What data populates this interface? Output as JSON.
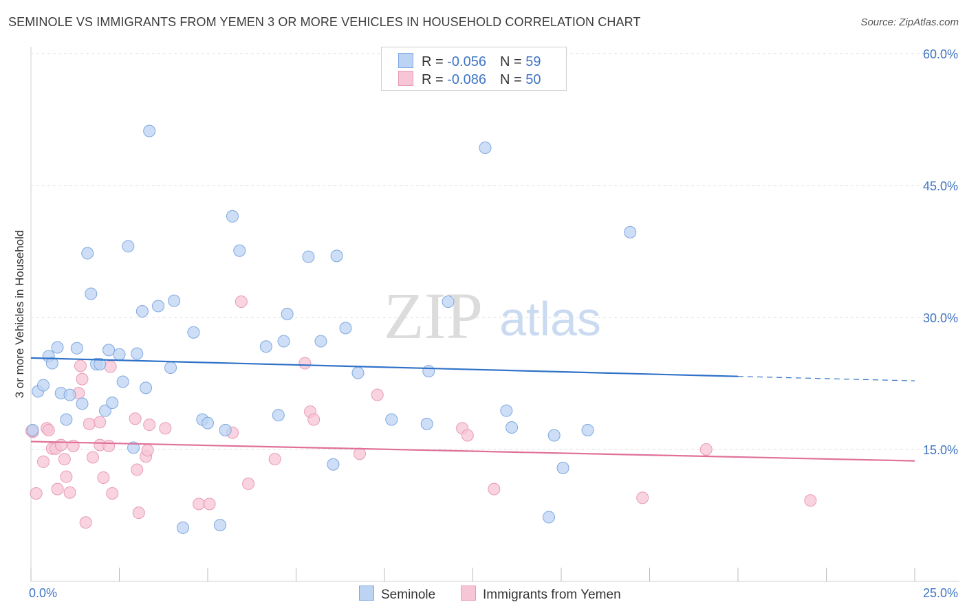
{
  "title": "SEMINOLE VS IMMIGRANTS FROM YEMEN 3 OR MORE VEHICLES IN HOUSEHOLD CORRELATION CHART",
  "source": "Source: ZipAtlas.com",
  "watermark": {
    "zip": "ZIP",
    "atlas": "atlas"
  },
  "legend": {
    "rows": [
      {
        "r_label": "R = ",
        "r_value": "-0.056",
        "n_label": "N = ",
        "n_value": "59"
      },
      {
        "r_label": "R = ",
        "r_value": "-0.086",
        "n_label": "N = ",
        "n_value": "50"
      }
    ]
  },
  "colors": {
    "seminole_fill": "#bcd3f3",
    "seminole_stroke": "#7ea8e0",
    "seminole_line": "#2f72c8",
    "yemen_fill": "#f7c6d6",
    "yemen_stroke": "#e89ab4",
    "yemen_line": "#e0709a",
    "axis_label": "#3f74c4",
    "grid": "#dddddd"
  },
  "chart_data": {
    "type": "scatter",
    "title": "SEMINOLE VS IMMIGRANTS FROM YEMEN 3 OR MORE VEHICLES IN HOUSEHOLD CORRELATION CHART",
    "xlabel": "",
    "ylabel": "3 or more Vehicles in Household",
    "xlim": [
      0,
      25
    ],
    "ylim": [
      0,
      60
    ],
    "x_tick_labels": [
      "0.0%",
      "25.0%"
    ],
    "y_ticks": [
      15,
      30,
      45,
      60
    ],
    "y_tick_labels": [
      "15.0%",
      "30.0%",
      "45.0%",
      "60.0%"
    ],
    "grid": true,
    "legend_position": "bottom-center",
    "series": [
      {
        "name": "Seminole",
        "points": [
          [
            0.05,
            17.2
          ],
          [
            0.2,
            21.6
          ],
          [
            0.35,
            22.3
          ],
          [
            0.5,
            25.6
          ],
          [
            0.6,
            24.8
          ],
          [
            0.75,
            26.6
          ],
          [
            0.85,
            21.4
          ],
          [
            1.0,
            18.4
          ],
          [
            1.1,
            21.2
          ],
          [
            1.3,
            26.5
          ],
          [
            1.45,
            20.2
          ],
          [
            1.6,
            37.3
          ],
          [
            1.7,
            32.7
          ],
          [
            1.85,
            24.7
          ],
          [
            1.95,
            24.7
          ],
          [
            2.1,
            19.4
          ],
          [
            2.2,
            26.3
          ],
          [
            2.3,
            20.3
          ],
          [
            2.5,
            25.8
          ],
          [
            2.6,
            22.7
          ],
          [
            2.75,
            38.1
          ],
          [
            2.9,
            15.2
          ],
          [
            3.0,
            25.9
          ],
          [
            3.15,
            30.7
          ],
          [
            3.25,
            22.0
          ],
          [
            3.35,
            51.2
          ],
          [
            3.6,
            31.3
          ],
          [
            3.95,
            24.3
          ],
          [
            4.05,
            31.9
          ],
          [
            4.3,
            6.1
          ],
          [
            4.6,
            28.3
          ],
          [
            4.85,
            18.4
          ],
          [
            5.0,
            18.0
          ],
          [
            5.35,
            6.4
          ],
          [
            5.5,
            17.2
          ],
          [
            5.7,
            41.5
          ],
          [
            5.9,
            37.6
          ],
          [
            6.65,
            26.7
          ],
          [
            7.0,
            18.9
          ],
          [
            7.15,
            27.3
          ],
          [
            7.25,
            30.4
          ],
          [
            7.85,
            36.9
          ],
          [
            8.2,
            27.3
          ],
          [
            8.55,
            13.3
          ],
          [
            8.65,
            37.0
          ],
          [
            8.9,
            28.8
          ],
          [
            9.25,
            23.7
          ],
          [
            10.2,
            18.4
          ],
          [
            11.2,
            17.9
          ],
          [
            11.25,
            23.9
          ],
          [
            11.8,
            31.8
          ],
          [
            12.85,
            49.3
          ],
          [
            13.45,
            19.4
          ],
          [
            13.6,
            17.5
          ],
          [
            14.65,
            7.3
          ],
          [
            14.8,
            16.6
          ],
          [
            15.05,
            12.9
          ],
          [
            15.75,
            17.2
          ],
          [
            16.95,
            39.7
          ]
        ]
      },
      {
        "name": "Immigrants from Yemen",
        "points": [
          [
            0.05,
            17.0
          ],
          [
            0.15,
            10.0
          ],
          [
            0.35,
            13.6
          ],
          [
            0.45,
            17.4
          ],
          [
            0.5,
            17.2
          ],
          [
            0.6,
            15.1
          ],
          [
            0.7,
            15.1
          ],
          [
            0.75,
            10.5
          ],
          [
            0.85,
            15.5
          ],
          [
            0.95,
            13.9
          ],
          [
            1.0,
            11.9
          ],
          [
            1.1,
            10.1
          ],
          [
            1.2,
            15.4
          ],
          [
            1.35,
            21.4
          ],
          [
            1.4,
            24.5
          ],
          [
            1.45,
            23.0
          ],
          [
            1.55,
            6.7
          ],
          [
            1.65,
            17.9
          ],
          [
            1.75,
            14.1
          ],
          [
            1.95,
            15.5
          ],
          [
            1.95,
            18.1
          ],
          [
            2.05,
            11.8
          ],
          [
            2.2,
            15.4
          ],
          [
            2.25,
            24.4
          ],
          [
            2.3,
            10.0
          ],
          [
            2.95,
            18.5
          ],
          [
            3.0,
            12.7
          ],
          [
            3.05,
            7.8
          ],
          [
            3.25,
            14.2
          ],
          [
            3.3,
            14.9
          ],
          [
            3.35,
            17.8
          ],
          [
            3.8,
            17.4
          ],
          [
            4.75,
            8.8
          ],
          [
            5.05,
            8.8
          ],
          [
            5.7,
            16.9
          ],
          [
            5.95,
            31.8
          ],
          [
            6.15,
            11.1
          ],
          [
            6.9,
            13.9
          ],
          [
            7.75,
            24.8
          ],
          [
            7.9,
            19.3
          ],
          [
            8.0,
            18.4
          ],
          [
            9.3,
            14.5
          ],
          [
            9.8,
            21.2
          ],
          [
            12.2,
            17.4
          ],
          [
            12.35,
            16.6
          ],
          [
            13.1,
            10.5
          ],
          [
            17.3,
            9.5
          ],
          [
            19.1,
            15.0
          ],
          [
            22.05,
            9.2
          ],
          [
            0.02,
            17.1
          ]
        ]
      }
    ],
    "trend_lines": [
      {
        "series": "Seminole",
        "x": [
          0,
          20
        ],
        "y": [
          25.4,
          23.3
        ],
        "dashed_to": [
          25,
          22.8
        ]
      },
      {
        "series": "Immigrants from Yemen",
        "x": [
          0,
          25
        ],
        "y": [
          15.9,
          13.7
        ]
      }
    ]
  }
}
